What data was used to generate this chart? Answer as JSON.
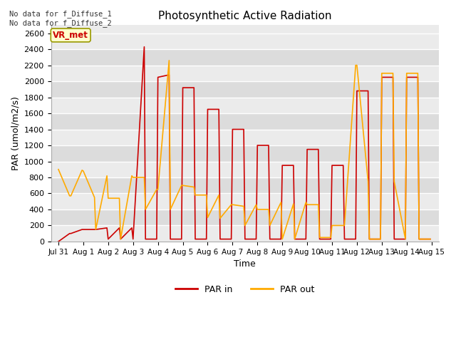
{
  "title": "Photosynthetic Active Radiation",
  "xlabel": "Time",
  "ylabel": "PAR (umol/m2/s)",
  "annotation_text": "No data for f_Diffuse_1\nNo data for f_Diffuse_2",
  "box_label": "VR_met",
  "ylim": [
    0,
    2700
  ],
  "yticks": [
    0,
    200,
    400,
    600,
    800,
    1000,
    1200,
    1400,
    1600,
    1800,
    2000,
    2200,
    2400,
    2600
  ],
  "xtick_labels": [
    "Jul 31",
    "Aug 1",
    "Aug 2",
    "Aug 3",
    "Aug 4",
    "Aug 5",
    "Aug 6",
    "Aug 7",
    "Aug 8",
    "Aug 9",
    "Aug 10",
    "Aug 11",
    "Aug 12",
    "Aug 13",
    "Aug 14",
    "Aug 15"
  ],
  "xtick_positions": [
    0,
    1,
    2,
    3,
    4,
    5,
    6,
    7,
    8,
    9,
    10,
    11,
    12,
    13,
    14,
    15
  ],
  "xlim": [
    -0.3,
    15.3
  ],
  "par_in_x": [
    0.0,
    0.45,
    0.5,
    0.95,
    1.0,
    1.45,
    1.5,
    1.95,
    2.0,
    2.45,
    2.5,
    2.95,
    3.0,
    3.45,
    3.5,
    3.95,
    4.0,
    4.45,
    4.5,
    4.95,
    5.0,
    5.45,
    5.5,
    5.95,
    6.0,
    6.45,
    6.5,
    6.95,
    7.0,
    7.45,
    7.5,
    7.95,
    8.0,
    8.45,
    8.5,
    8.95,
    9.0,
    9.45,
    9.5,
    9.95,
    10.0,
    10.45,
    10.5,
    10.95,
    11.0,
    11.45,
    11.5,
    11.95,
    12.0,
    12.45,
    12.5,
    12.95,
    13.0,
    13.45,
    13.5,
    13.95,
    14.0,
    14.45,
    14.5,
    14.95
  ],
  "par_in_y": [
    0,
    100,
    100,
    150,
    150,
    150,
    150,
    170,
    30,
    170,
    30,
    170,
    30,
    2430,
    30,
    30,
    2050,
    2080,
    30,
    30,
    1920,
    1920,
    30,
    30,
    1650,
    1650,
    30,
    30,
    1400,
    1400,
    30,
    30,
    1200,
    1200,
    30,
    30,
    950,
    950,
    30,
    30,
    1150,
    1150,
    30,
    30,
    950,
    950,
    30,
    30,
    1880,
    1880,
    30,
    30,
    2050,
    2050,
    30,
    30,
    2050,
    2050,
    30,
    30
  ],
  "par_out_x": [
    0.0,
    0.45,
    0.5,
    0.95,
    1.0,
    1.45,
    1.5,
    1.95,
    2.0,
    2.45,
    2.5,
    2.95,
    3.0,
    3.45,
    3.5,
    3.95,
    4.0,
    4.45,
    4.5,
    4.95,
    5.0,
    5.45,
    5.5,
    5.95,
    6.0,
    6.45,
    6.5,
    6.95,
    7.0,
    7.45,
    7.5,
    7.95,
    8.0,
    8.45,
    8.5,
    8.95,
    9.0,
    9.45,
    9.5,
    9.95,
    10.0,
    10.45,
    10.5,
    10.95,
    11.0,
    11.45,
    11.5,
    11.95,
    12.0,
    12.45,
    12.5,
    12.95,
    13.0,
    13.45,
    13.5,
    13.95,
    14.0,
    14.45,
    14.5,
    14.95
  ],
  "par_out_y": [
    900,
    570,
    570,
    890,
    880,
    550,
    150,
    820,
    540,
    540,
    30,
    820,
    800,
    800,
    400,
    650,
    650,
    2260,
    400,
    700,
    700,
    680,
    580,
    580,
    300,
    580,
    290,
    460,
    460,
    440,
    200,
    460,
    400,
    400,
    200,
    490,
    30,
    470,
    30,
    490,
    460,
    460,
    50,
    50,
    200,
    200,
    200,
    2200,
    2200,
    750,
    30,
    30,
    2100,
    2100,
    750,
    30,
    2100,
    2100,
    30,
    30
  ],
  "par_in_color": "#cc0000",
  "par_out_color": "#ffaa00",
  "bg_light": "#ebebeb",
  "bg_dark": "#dcdcdc",
  "grid_color": "#ffffff",
  "legend_items": [
    "PAR in",
    "PAR out"
  ]
}
